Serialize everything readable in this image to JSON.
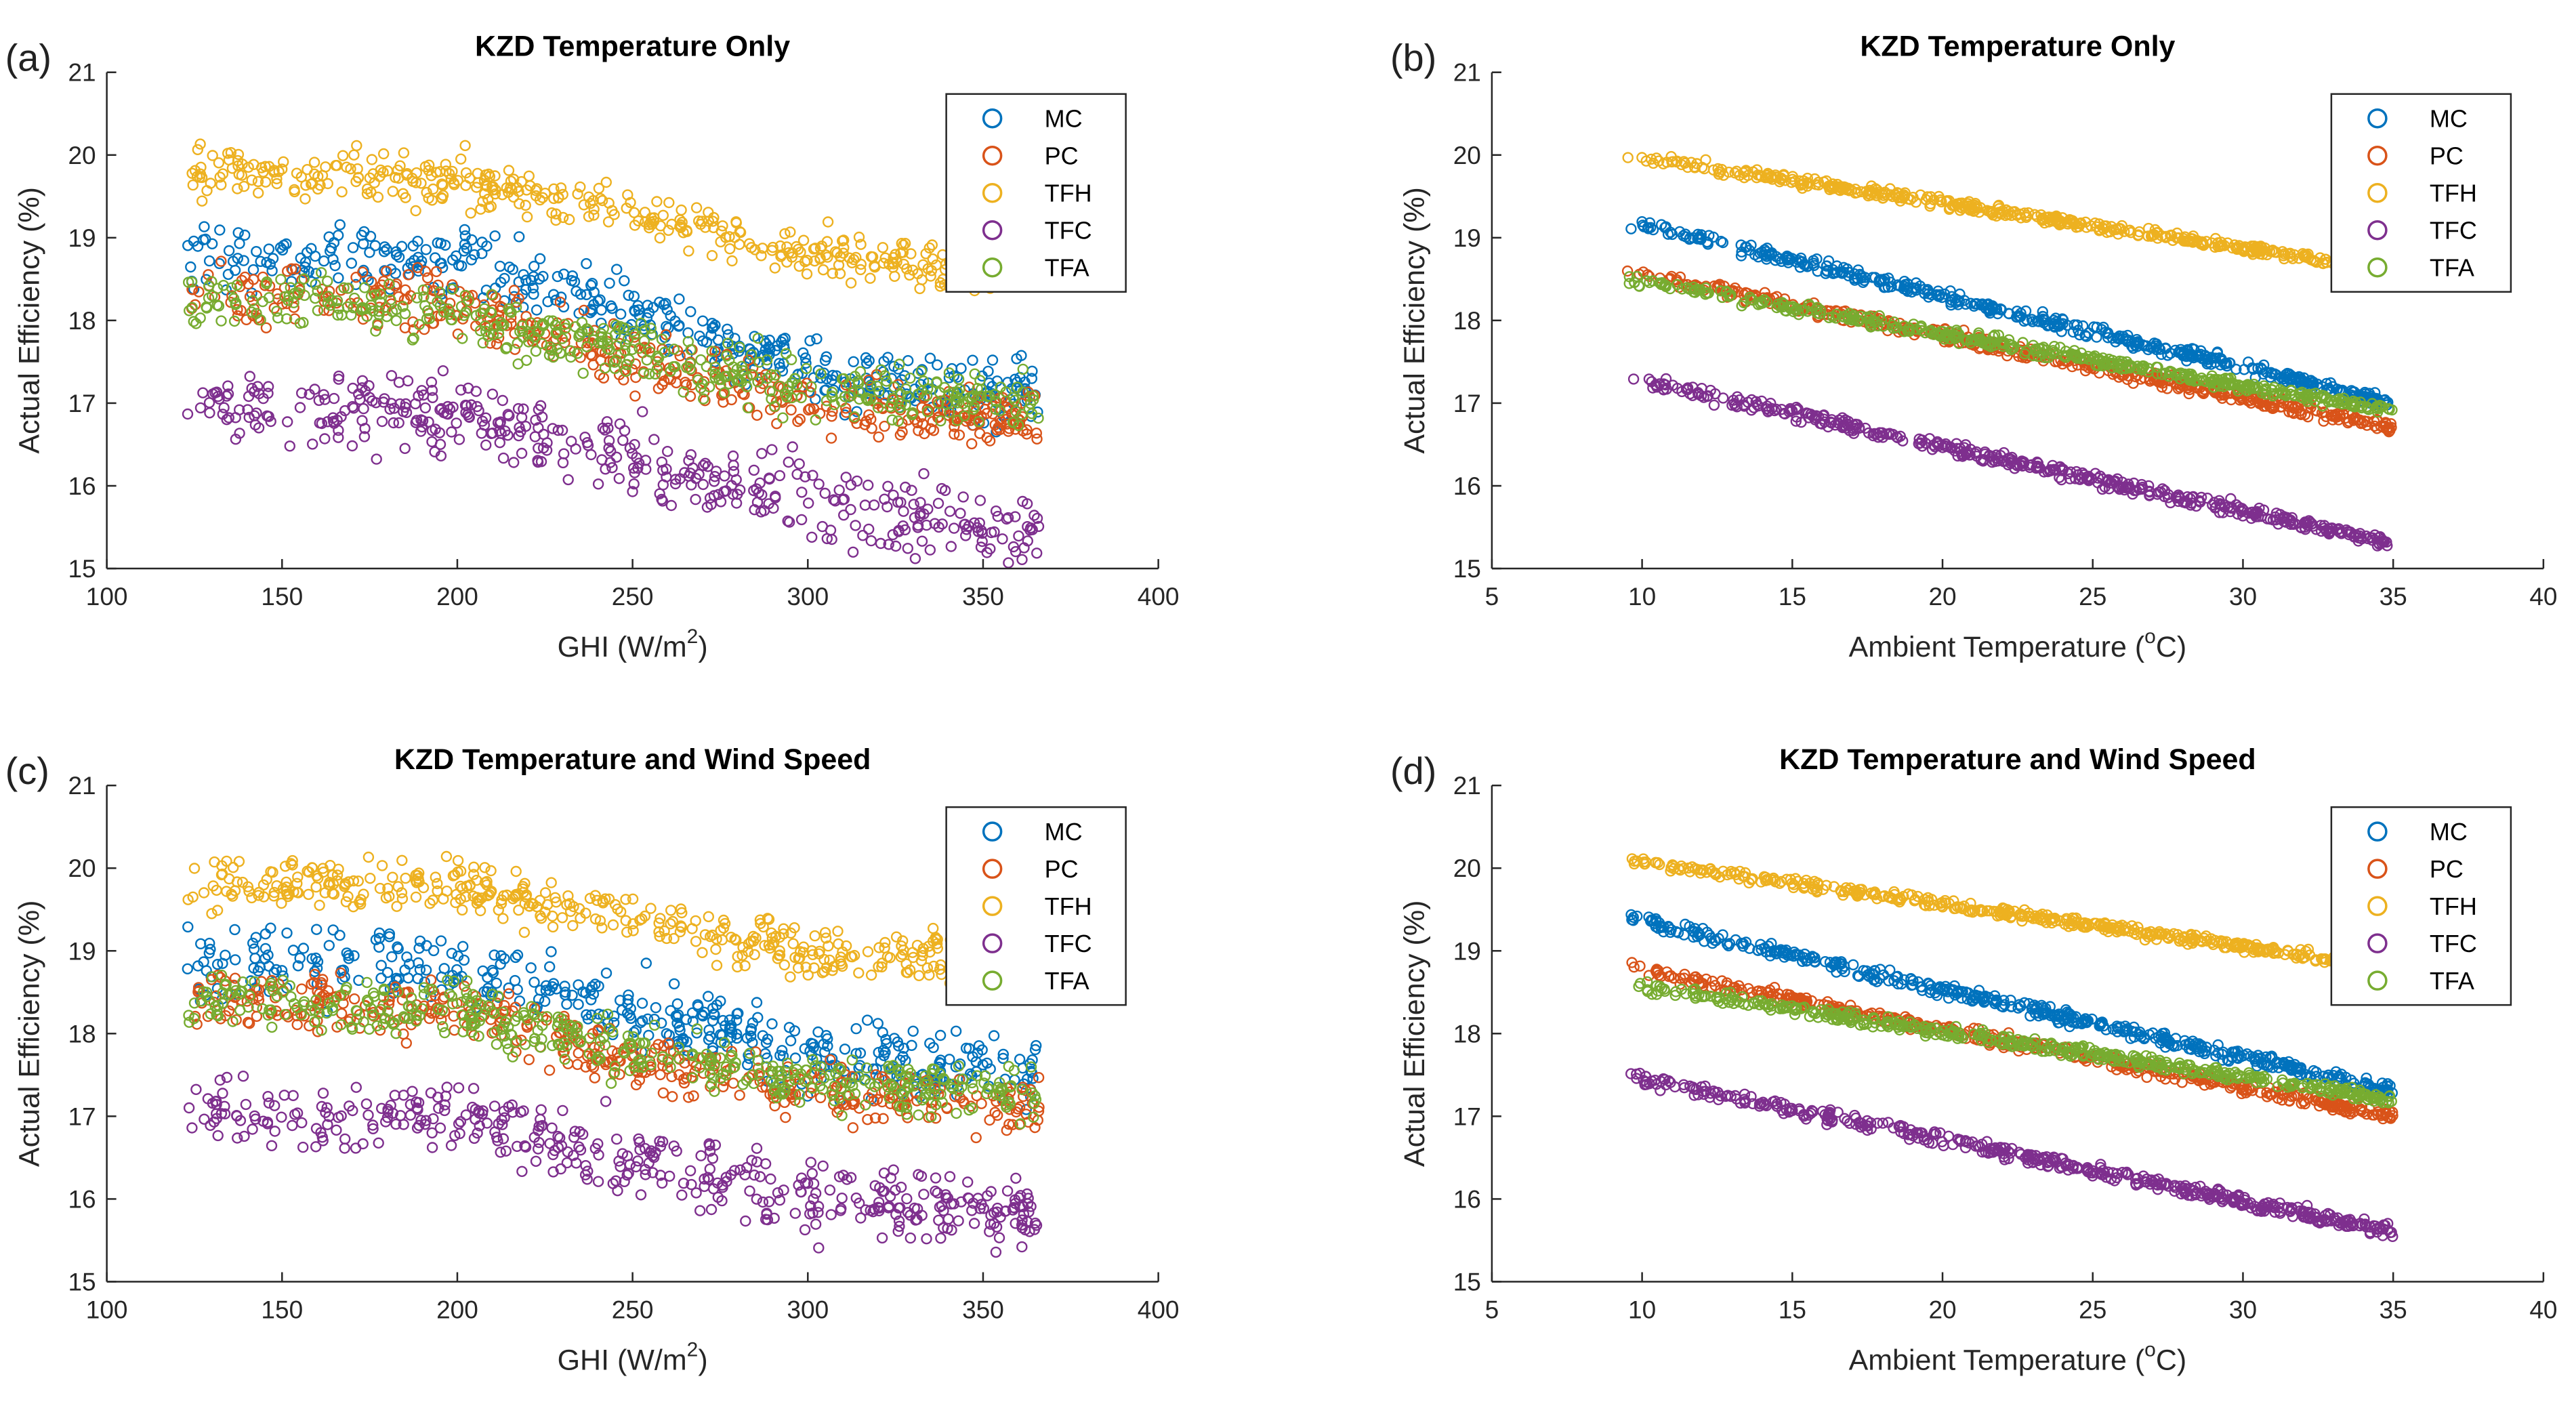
{
  "colors": {
    "MC": "#0072BD",
    "PC": "#D95319",
    "TFH": "#EDB120",
    "TFC": "#7E2F8E",
    "TFA": "#77AC30"
  },
  "chart_data": [
    {
      "panel_label": "(a)",
      "type": "scatter",
      "title": "KZD Temperature Only",
      "xlabel": "GHI (W/m",
      "xlabel_sup": "2",
      "xlabel_end": ")",
      "ylabel": "Actual Efficiency (%)",
      "xlim": [
        100,
        400
      ],
      "ylim": [
        15,
        21
      ],
      "xticks": [
        100,
        150,
        200,
        250,
        300,
        350,
        400
      ],
      "yticks": [
        15,
        16,
        17,
        18,
        19,
        20,
        21
      ],
      "legend": [
        "MC",
        "PC",
        "TFH",
        "TFC",
        "TFA"
      ],
      "legend_position": "top-right",
      "x_range_data": [
        123,
        366
      ],
      "series": [
        {
          "name": "MC",
          "trend": [
            [
              123,
              18.8
            ],
            [
              200,
              18.7
            ],
            [
              250,
              18.1
            ],
            [
              300,
              17.4
            ],
            [
              366,
              17.1
            ]
          ],
          "spread": 0.4
        },
        {
          "name": "PC",
          "trend": [
            [
              123,
              18.3
            ],
            [
              200,
              18.2
            ],
            [
              250,
              17.5
            ],
            [
              300,
              17.0
            ],
            [
              366,
              16.8
            ]
          ],
          "spread": 0.35
        },
        {
          "name": "TFH",
          "trend": [
            [
              123,
              19.8
            ],
            [
              200,
              19.7
            ],
            [
              250,
              19.3
            ],
            [
              300,
              18.8
            ],
            [
              366,
              18.6
            ]
          ],
          "spread": 0.3
        },
        {
          "name": "TFC",
          "trend": [
            [
              123,
              16.9
            ],
            [
              200,
              16.9
            ],
            [
              250,
              16.3
            ],
            [
              300,
              15.8
            ],
            [
              366,
              15.4
            ]
          ],
          "spread": 0.45
        },
        {
          "name": "TFA",
          "trend": [
            [
              123,
              18.3
            ],
            [
              200,
              18.1
            ],
            [
              250,
              17.6
            ],
            [
              300,
              17.2
            ],
            [
              366,
              17.0
            ]
          ],
          "spread": 0.35
        }
      ]
    },
    {
      "panel_label": "(b)",
      "type": "scatter",
      "title": "KZD Temperature Only",
      "xlabel": "Ambient Temperature (",
      "xlabel_sup": "o",
      "xlabel_end": "C)",
      "ylabel": "Actual Efficiency (%)",
      "xlim": [
        5,
        40
      ],
      "ylim": [
        15,
        21
      ],
      "xticks": [
        5,
        10,
        15,
        20,
        25,
        30,
        35,
        40
      ],
      "yticks": [
        15,
        16,
        17,
        18,
        19,
        20,
        21
      ],
      "legend": [
        "MC",
        "PC",
        "TFH",
        "TFC",
        "TFA"
      ],
      "legend_position": "top-right",
      "x_range_data": [
        9.5,
        35
      ],
      "series": [
        {
          "name": "MC",
          "trend": [
            [
              9.5,
              19.2
            ],
            [
              35,
              17.0
            ]
          ],
          "spread": 0.08
        },
        {
          "name": "PC",
          "trend": [
            [
              9.5,
              18.6
            ],
            [
              35,
              16.7
            ]
          ],
          "spread": 0.08
        },
        {
          "name": "TFH",
          "trend": [
            [
              9.5,
              20.0
            ],
            [
              35,
              18.6
            ]
          ],
          "spread": 0.06
        },
        {
          "name": "TFC",
          "trend": [
            [
              9.5,
              17.3
            ],
            [
              35,
              15.3
            ]
          ],
          "spread": 0.08
        },
        {
          "name": "TFA",
          "trend": [
            [
              9.5,
              18.5
            ],
            [
              35,
              16.9
            ]
          ],
          "spread": 0.07
        }
      ]
    },
    {
      "panel_label": "(c)",
      "type": "scatter",
      "title": "KZD Temperature and Wind Speed",
      "xlabel": "GHI (W/m",
      "xlabel_sup": "2",
      "xlabel_end": ")",
      "ylabel": "Actual Efficiency (%)",
      "xlim": [
        100,
        400
      ],
      "ylim": [
        15,
        21
      ],
      "xticks": [
        100,
        150,
        200,
        250,
        300,
        350,
        400
      ],
      "yticks": [
        15,
        16,
        17,
        18,
        19,
        20,
        21
      ],
      "legend": [
        "MC",
        "PC",
        "TFH",
        "TFC",
        "TFA"
      ],
      "legend_position": "top-right",
      "x_range_data": [
        123,
        366
      ],
      "series": [
        {
          "name": "MC",
          "trend": [
            [
              123,
              18.9
            ],
            [
              200,
              18.8
            ],
            [
              250,
              18.3
            ],
            [
              300,
              17.7
            ],
            [
              366,
              17.5
            ]
          ],
          "spread": 0.45
        },
        {
          "name": "PC",
          "trend": [
            [
              123,
              18.4
            ],
            [
              200,
              18.3
            ],
            [
              250,
              17.7
            ],
            [
              300,
              17.3
            ],
            [
              366,
              17.1
            ]
          ],
          "spread": 0.35
        },
        {
          "name": "TFH",
          "trend": [
            [
              123,
              19.8
            ],
            [
              200,
              19.8
            ],
            [
              250,
              19.4
            ],
            [
              300,
              19.0
            ],
            [
              366,
              18.9
            ]
          ],
          "spread": 0.3
        },
        {
          "name": "TFC",
          "trend": [
            [
              123,
              17.0
            ],
            [
              200,
              17.0
            ],
            [
              250,
              16.5
            ],
            [
              300,
              16.0
            ],
            [
              366,
              15.8
            ]
          ],
          "spread": 0.45
        },
        {
          "name": "TFA",
          "trend": [
            [
              123,
              18.4
            ],
            [
              200,
              18.3
            ],
            [
              250,
              17.8
            ],
            [
              300,
              17.4
            ],
            [
              366,
              17.3
            ]
          ],
          "spread": 0.35
        }
      ]
    },
    {
      "panel_label": "(d)",
      "type": "scatter",
      "title": "KZD Temperature and Wind Speed",
      "xlabel": "Ambient Temperature (",
      "xlabel_sup": "o",
      "xlabel_end": "C)",
      "ylabel": "Actual Efficiency (%)",
      "xlim": [
        5,
        40
      ],
      "ylim": [
        15,
        21
      ],
      "xticks": [
        5,
        10,
        15,
        20,
        25,
        30,
        35,
        40
      ],
      "yticks": [
        15,
        16,
        17,
        18,
        19,
        20,
        21
      ],
      "legend": [
        "MC",
        "PC",
        "TFH",
        "TFC",
        "TFA"
      ],
      "legend_position": "top-right",
      "x_range_data": [
        9.5,
        35
      ],
      "series": [
        {
          "name": "MC",
          "trend": [
            [
              9.5,
              19.4
            ],
            [
              35,
              17.3
            ]
          ],
          "spread": 0.08
        },
        {
          "name": "PC",
          "trend": [
            [
              9.5,
              18.8
            ],
            [
              35,
              17.0
            ]
          ],
          "spread": 0.08
        },
        {
          "name": "TFH",
          "trend": [
            [
              9.5,
              20.1
            ],
            [
              35,
              18.8
            ]
          ],
          "spread": 0.06
        },
        {
          "name": "TFC",
          "trend": [
            [
              9.5,
              17.5
            ],
            [
              35,
              15.6
            ]
          ],
          "spread": 0.08
        },
        {
          "name": "TFA",
          "trend": [
            [
              9.5,
              18.6
            ],
            [
              35,
              17.2
            ]
          ],
          "spread": 0.07
        }
      ]
    }
  ]
}
